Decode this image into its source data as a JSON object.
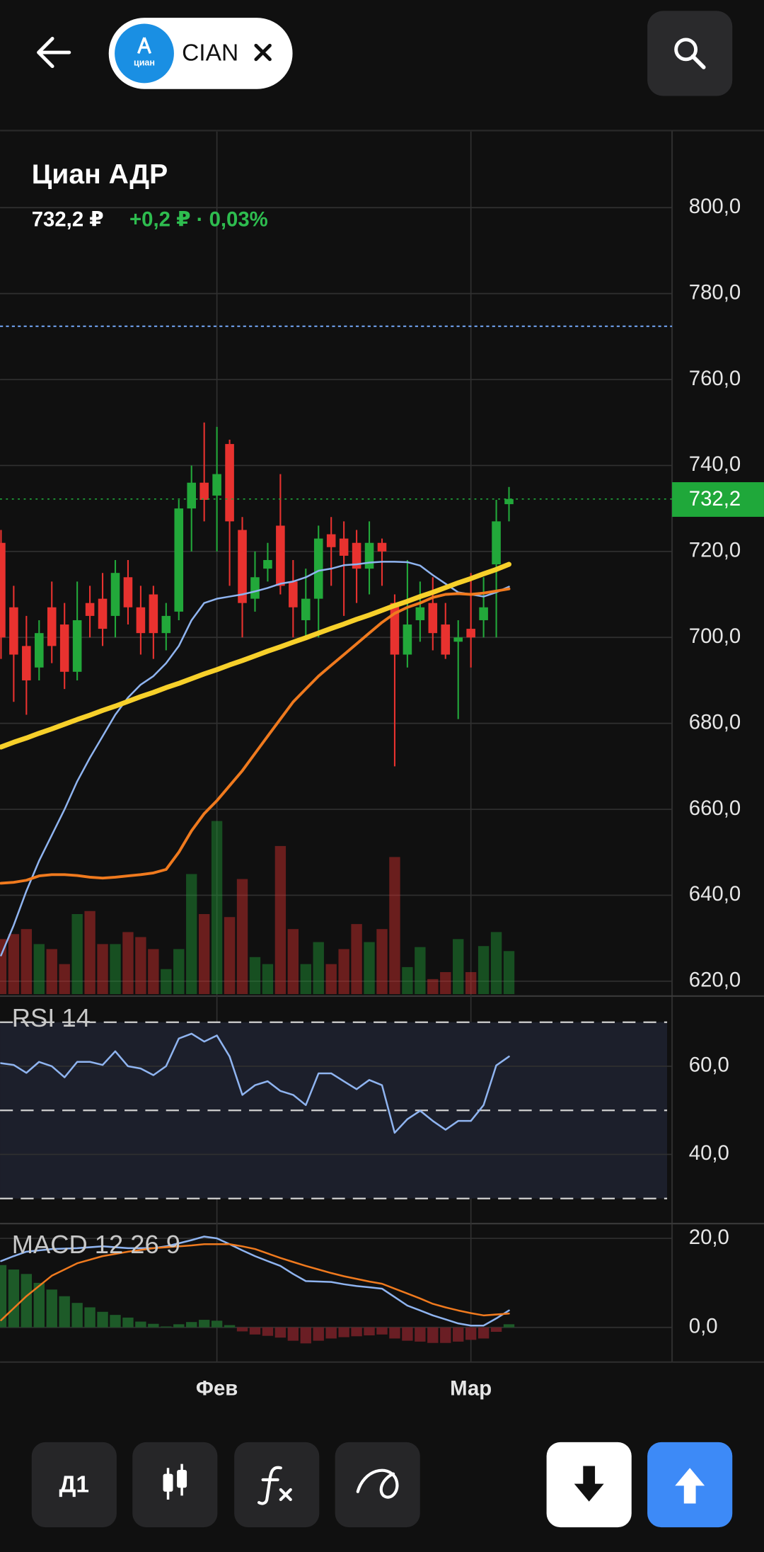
{
  "header": {
    "chip": {
      "logo_text": "циан",
      "label": "CIAN"
    }
  },
  "chart_data": [
    {
      "type": "candlestick",
      "title": "Циан АДР",
      "price_text": "732,2 ₽",
      "change_text": "+0,2 ₽ · 0,03%",
      "categories": [
        null,
        null,
        null,
        null,
        null,
        null,
        null,
        null,
        null,
        null,
        null,
        null,
        null,
        null,
        null,
        null,
        null,
        "Фев",
        null,
        null,
        null,
        null,
        null,
        null,
        null,
        null,
        null,
        null,
        null,
        null,
        null,
        null,
        null,
        null,
        null,
        null,
        null,
        "Мар",
        null,
        null,
        null
      ],
      "open": [
        722,
        707,
        698,
        693,
        707,
        703,
        692,
        708,
        709,
        705,
        714,
        707,
        710,
        701,
        706,
        730,
        736,
        733,
        745,
        725,
        709,
        716,
        726,
        713,
        704,
        709,
        724,
        723,
        722,
        716,
        722,
        708,
        696,
        704,
        708,
        703,
        699,
        702,
        704,
        717,
        731
      ],
      "close": [
        700,
        696,
        690,
        701,
        698,
        692,
        704,
        705,
        702,
        715,
        707,
        701,
        701,
        705,
        730,
        736,
        732,
        738,
        727,
        708,
        714,
        718,
        712,
        707,
        709,
        723,
        721,
        719,
        716,
        722,
        720,
        696,
        703,
        707,
        701,
        696,
        700,
        700,
        707,
        727,
        732.2
      ],
      "high": [
        725,
        712,
        705,
        704,
        713,
        708,
        713,
        712,
        715,
        718,
        718,
        712,
        712,
        708,
        732,
        740,
        750,
        749,
        746,
        728,
        720,
        722,
        738,
        718,
        716,
        726,
        728,
        727,
        725,
        727,
        723,
        710,
        718,
        713,
        714,
        708,
        704,
        715,
        714,
        732,
        735
      ],
      "low": [
        695,
        685,
        682,
        690,
        694,
        688,
        690,
        700,
        698,
        700,
        703,
        696,
        695,
        697,
        704,
        720,
        727,
        720,
        712,
        700,
        706,
        713,
        710,
        700,
        700,
        700,
        712,
        705,
        708,
        710,
        712,
        670,
        693,
        699,
        697,
        695,
        681,
        693,
        700,
        700,
        727
      ],
      "volume": [
        55,
        60,
        65,
        50,
        45,
        30,
        80,
        83,
        50,
        50,
        62,
        57,
        45,
        25,
        45,
        120,
        80,
        173,
        77,
        115,
        37,
        30,
        148,
        65,
        30,
        52,
        30,
        45,
        70,
        52,
        65,
        137,
        27,
        47,
        15,
        22,
        55,
        22,
        48,
        62,
        43
      ],
      "up_color": "#22a83a",
      "down_color": "#e8322f",
      "series": [
        {
          "color": "#8fb4f0",
          "values": [
            626,
            633,
            641,
            648,
            654,
            660,
            666.5,
            672,
            677,
            682,
            686,
            689,
            691,
            694,
            698,
            704,
            708,
            709,
            709.5,
            710,
            710.7,
            711.5,
            712.5,
            713,
            714,
            715.5,
            716,
            716.8,
            717,
            717.4,
            717.6,
            717.6,
            717.5,
            716.7,
            714.5,
            712.5,
            710.5,
            710,
            709.5,
            710.5,
            711.8
          ]
        },
        {
          "color": "#f07a1e",
          "values": [
            642.8,
            643,
            643.5,
            644.5,
            644.8,
            644.8,
            644.6,
            644.2,
            644,
            644.2,
            644.5,
            644.8,
            645.2,
            646,
            650,
            655,
            659,
            662,
            665.5,
            669,
            673,
            677,
            681,
            685,
            688,
            691,
            693.5,
            696,
            698.5,
            701,
            703.5,
            705.6,
            707,
            708,
            709.3,
            710,
            710.2,
            710,
            710.3,
            710.8,
            711.3
          ]
        },
        {
          "color": "#f7d02a",
          "values": [
            674.5,
            675.6,
            676.6,
            677.7,
            678.7,
            679.8,
            680.9,
            681.9,
            683,
            684,
            685.1,
            686.2,
            687.2,
            688.3,
            689.3,
            690.4,
            691.5,
            692.5,
            693.6,
            694.6,
            695.7,
            696.8,
            697.8,
            698.9,
            699.9,
            701,
            702.1,
            703.1,
            704.2,
            705.2,
            706.3,
            707.4,
            708.4,
            709.5,
            710.5,
            711.6,
            712.7,
            713.7,
            714.8,
            715.8,
            717
          ]
        }
      ],
      "ylim": [
        617,
        817.7
      ],
      "yticks": [
        {
          "value": 800,
          "label": "800,0"
        },
        {
          "value": 780,
          "label": "780,0"
        },
        {
          "value": 760,
          "label": "760,0"
        },
        {
          "value": 740,
          "label": "740,0"
        },
        {
          "value": 720,
          "label": "720,0"
        },
        {
          "value": 700,
          "label": "700,0"
        },
        {
          "value": 680,
          "label": "680,0"
        },
        {
          "value": 660,
          "label": "660,0"
        },
        {
          "value": 640,
          "label": "640,0"
        },
        {
          "value": 620,
          "label": "620,0"
        }
      ],
      "grid": true,
      "reference_line": {
        "value": 772.4,
        "color": "#6d9eeb"
      },
      "last_price": {
        "value": 732.2,
        "label": "732,2",
        "color": "#1fa83a"
      }
    },
    {
      "type": "line",
      "title": "RSI 14",
      "series": [
        {
          "color": "#8fb4f0",
          "values": [
            60.7,
            60.3,
            58.5,
            61,
            60,
            57.5,
            61,
            61,
            60.3,
            63.4,
            60,
            59.5,
            58,
            60,
            66.3,
            67.4,
            65.6,
            67,
            62.2,
            53.5,
            55.7,
            56.6,
            54.4,
            53.5,
            51.2,
            58.4,
            58.4,
            56.6,
            54.8,
            56.9,
            55.7,
            44.9,
            48,
            49.9,
            47.6,
            45.6,
            47.6,
            47.6,
            51.2,
            60.2,
            62.2
          ]
        }
      ],
      "ylim": [
        24.3,
        75.7
      ],
      "yticks": [
        {
          "value": 60,
          "label": "60,0"
        },
        {
          "value": 40,
          "label": "40,0"
        }
      ],
      "levels": [
        70,
        50,
        30
      ],
      "band_color": "#1c1f2b"
    },
    {
      "type": "macd",
      "title": "MACD 12 26 9",
      "series": [
        {
          "color": "#8fb4f0",
          "values": [
            14.9,
            16,
            17,
            17.3,
            17.6,
            17.7,
            17.8,
            18,
            18.2,
            18,
            17.8,
            17.8,
            17.8,
            18.2,
            18.9,
            19.6,
            20.4,
            20,
            18.7,
            17.3,
            16,
            14.9,
            13.8,
            12,
            10.4,
            10.3,
            10.2,
            9.7,
            9.3,
            9,
            8.7,
            6.8,
            4.9,
            3.8,
            2.7,
            1.8,
            0.9,
            0.4,
            0.4,
            2,
            3.8
          ]
        },
        {
          "color": "#f07a1e",
          "values": [
            1.6,
            4.3,
            7,
            9.3,
            11.6,
            13,
            14.4,
            15.2,
            16,
            16.5,
            17,
            17.4,
            17.8,
            18,
            18.2,
            18.4,
            18.7,
            18.7,
            18.7,
            18.2,
            17.6,
            16.6,
            15.6,
            14.7,
            13.8,
            13,
            12.2,
            11.5,
            10.9,
            10.3,
            9.8,
            8.7,
            7.6,
            6.5,
            5.3,
            4.5,
            3.8,
            3.2,
            2.7,
            2.9,
            3.1
          ]
        }
      ],
      "histogram": [
        14,
        13,
        12,
        10,
        8.5,
        7,
        5.5,
        4.5,
        3.5,
        2.8,
        2.2,
        1.3,
        0.8,
        0.2,
        0.7,
        1.2,
        1.7,
        1.5,
        0.5,
        -0.9,
        -1.6,
        -1.9,
        -2.3,
        -3,
        -3.6,
        -3,
        -2.5,
        -2.2,
        -2,
        -1.8,
        -1.6,
        -2.5,
        -3,
        -3.2,
        -3.5,
        -3.5,
        -3.2,
        -2.8,
        -2.5,
        -1,
        0.7
      ],
      "histogram_up_color": "#1d5a28",
      "histogram_down_color": "#6a1e24",
      "ylim": [
        -7.8,
        23.1
      ],
      "yticks": [
        {
          "value": 20,
          "label": "20,0"
        },
        {
          "value": 0,
          "label": "0,0"
        }
      ]
    }
  ],
  "toolbar": {
    "timeframe": "Д1"
  }
}
